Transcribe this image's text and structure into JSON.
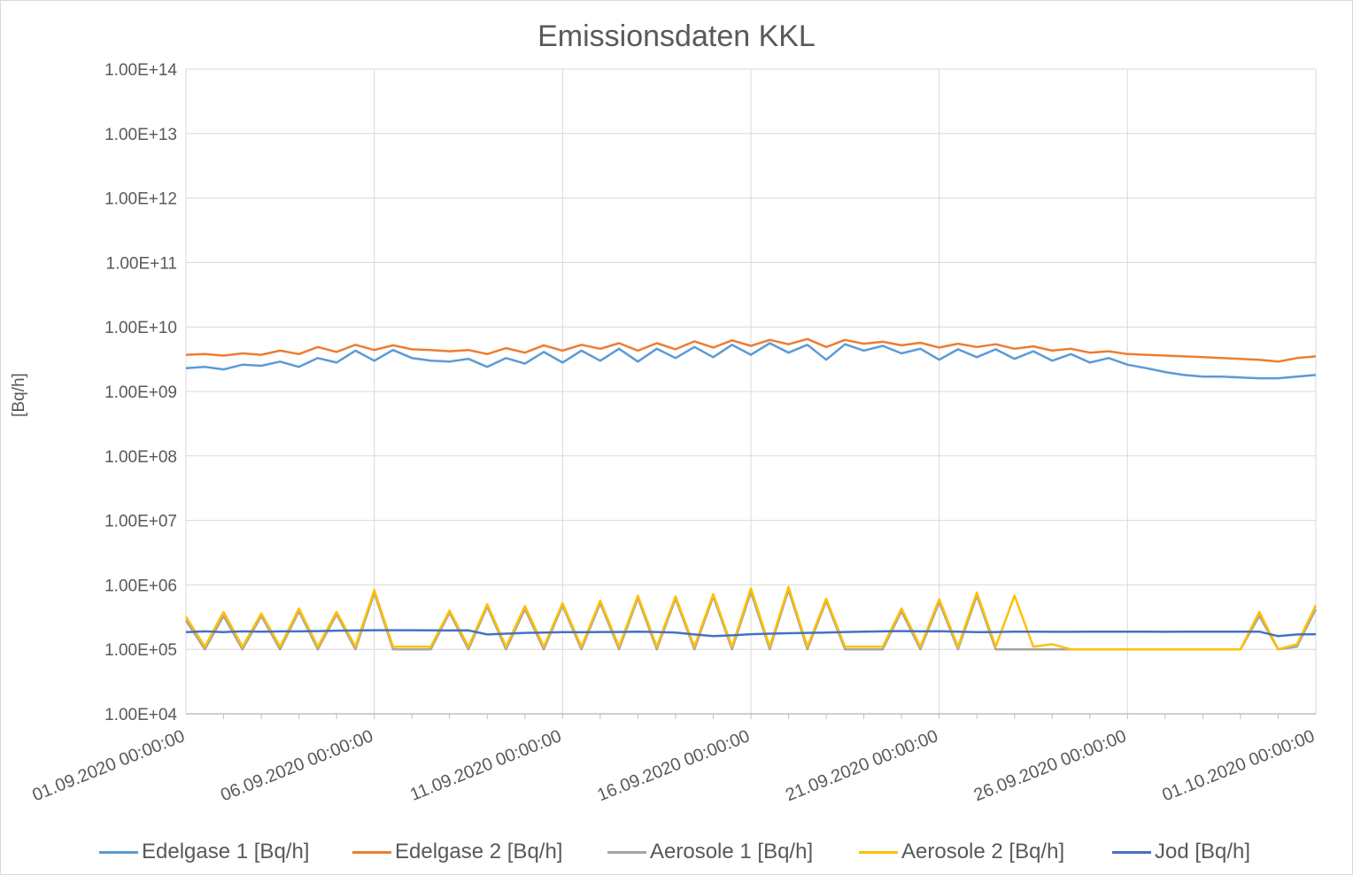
{
  "chart_data": {
    "type": "line",
    "title": "Emissionsdaten KKL",
    "xlabel": "",
    "ylabel": "[Bq/h]",
    "yscale": "log",
    "ylim": [
      10000,
      100000000000000
    ],
    "y_tick_labels": [
      "1.00E+14",
      "1.00E+13",
      "1.00E+12",
      "1.00E+11",
      "1.00E+10",
      "1.00E+09",
      "1.00E+08",
      "1.00E+07",
      "1.00E+06",
      "1.00E+05",
      "1.00E+04"
    ],
    "x_tick_labels": [
      "01.09.2020 00:00:00",
      "06.09.2020 00:00:00",
      "11.09.2020 00:00:00",
      "16.09.2020 00:00:00",
      "21.09.2020 00:00:00",
      "26.09.2020 00:00:00",
      "01.10.2020 00:00:00"
    ],
    "xlim": [
      "01.09.2020 00:00:00",
      "01.10.2020 00:00:00"
    ],
    "grid": true,
    "legend_position": "bottom",
    "x_days": [
      0,
      0.5,
      1,
      1.5,
      2,
      2.5,
      3,
      3.5,
      4,
      4.5,
      5,
      5.5,
      6,
      6.5,
      7,
      7.5,
      8,
      8.5,
      9,
      9.5,
      10,
      10.5,
      11,
      11.5,
      12,
      12.5,
      13,
      13.5,
      14,
      14.5,
      15,
      15.5,
      16,
      16.5,
      17,
      17.5,
      18,
      18.5,
      19,
      19.5,
      20,
      20.5,
      21,
      21.5,
      22,
      22.5,
      23,
      23.5,
      24,
      24.5,
      25,
      25.5,
      26,
      26.5,
      27,
      27.5,
      28,
      28.5,
      29,
      29.5,
      30
    ],
    "series": [
      {
        "name": "Edelgase 1 [Bq/h]",
        "color": "#5b9bd5",
        "values": [
          2300000000,
          2400000000,
          2200000000,
          2600000000,
          2500000000,
          2900000000,
          2400000000,
          3300000000,
          2800000000,
          4300000000,
          3000000000,
          4400000000,
          3300000000,
          3000000000,
          2900000000,
          3200000000,
          2400000000,
          3300000000,
          2700000000,
          4100000000,
          2800000000,
          4300000000,
          3000000000,
          4600000000,
          2900000000,
          4600000000,
          3300000000,
          4900000000,
          3400000000,
          5300000000,
          3700000000,
          5600000000,
          4000000000,
          5300000000,
          3100000000,
          5400000000,
          4300000000,
          5100000000,
          3900000000,
          4600000000,
          3100000000,
          4500000000,
          3400000000,
          4500000000,
          3200000000,
          4200000000,
          3000000000,
          3800000000,
          2800000000,
          3300000000,
          2600000000,
          2300000000,
          2000000000,
          1800000000,
          1700000000,
          1700000000,
          1650000000,
          1600000000,
          1600000000,
          1700000000,
          1800000000
        ]
      },
      {
        "name": "Edelgase 2 [Bq/h]",
        "color": "#ed7d31",
        "values": [
          3700000000,
          3800000000,
          3600000000,
          3900000000,
          3700000000,
          4300000000,
          3800000000,
          4900000000,
          4100000000,
          5300000000,
          4400000000,
          5200000000,
          4500000000,
          4400000000,
          4200000000,
          4400000000,
          3800000000,
          4700000000,
          4000000000,
          5200000000,
          4300000000,
          5300000000,
          4600000000,
          5600000000,
          4300000000,
          5600000000,
          4500000000,
          6000000000,
          4800000000,
          6200000000,
          5100000000,
          6300000000,
          5400000000,
          6500000000,
          4900000000,
          6300000000,
          5500000000,
          5900000000,
          5200000000,
          5700000000,
          4800000000,
          5500000000,
          4900000000,
          5400000000,
          4600000000,
          5000000000,
          4300000000,
          4600000000,
          4000000000,
          4200000000,
          3800000000,
          3700000000,
          3600000000,
          3500000000,
          3400000000,
          3300000000,
          3200000000,
          3100000000,
          2900000000,
          3300000000,
          3500000000
        ]
      },
      {
        "name": "Aerosole 1 [Bq/h]",
        "color": "#a5a5a5",
        "values": [
          280000,
          100000,
          330000,
          100000,
          330000,
          100000,
          390000,
          100000,
          350000,
          100000,
          750000,
          100000,
          100000,
          100000,
          370000,
          100000,
          460000,
          100000,
          420000,
          100000,
          480000,
          100000,
          520000,
          100000,
          620000,
          100000,
          610000,
          100000,
          660000,
          100000,
          780000,
          100000,
          840000,
          100000,
          560000,
          100000,
          100000,
          100000,
          390000,
          100000,
          540000,
          100000,
          680000,
          100000,
          100000,
          100000,
          100000,
          100000,
          100000,
          100000,
          100000,
          100000,
          100000,
          100000,
          100000,
          100000,
          100000,
          330000,
          100000,
          110000,
          420000
        ]
      },
      {
        "name": "Aerosole 2 [Bq/h]",
        "color": "#ffc000",
        "values": [
          320000,
          110000,
          380000,
          110000,
          360000,
          110000,
          430000,
          110000,
          380000,
          110000,
          830000,
          110000,
          110000,
          110000,
          400000,
          110000,
          500000,
          110000,
          470000,
          110000,
          520000,
          110000,
          570000,
          110000,
          680000,
          110000,
          660000,
          110000,
          720000,
          110000,
          880000,
          110000,
          930000,
          110000,
          610000,
          110000,
          110000,
          110000,
          430000,
          110000,
          600000,
          110000,
          760000,
          110000,
          680000,
          110000,
          120000,
          100000,
          100000,
          100000,
          100000,
          100000,
          100000,
          100000,
          100000,
          100000,
          100000,
          380000,
          100000,
          120000,
          480000
        ]
      },
      {
        "name": "Jod [Bq/h]",
        "color": "#4472c4",
        "values": [
          185000,
          190000,
          185000,
          190000,
          188000,
          190000,
          190000,
          192000,
          195000,
          196000,
          198000,
          198000,
          198000,
          197000,
          196000,
          197000,
          170000,
          175000,
          180000,
          182000,
          185000,
          184000,
          186000,
          186000,
          188000,
          186000,
          182000,
          170000,
          160000,
          165000,
          172000,
          175000,
          178000,
          180000,
          182000,
          186000,
          188000,
          190000,
          192000,
          190000,
          191000,
          188000,
          185000,
          186000,
          188000,
          188000,
          187000,
          187000,
          188000,
          188000,
          188000,
          188000,
          187000,
          188000,
          188000,
          188000,
          188000,
          188000,
          160000,
          170000,
          172000
        ]
      }
    ]
  }
}
